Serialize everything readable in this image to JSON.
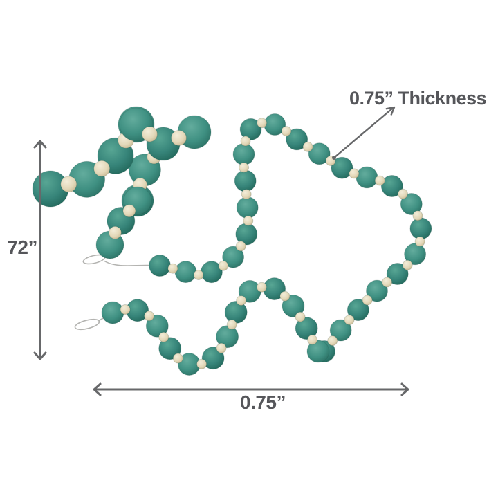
{
  "image": {
    "description": "Teal felt ball garland strung with small cream wooden spacer beads, coiled in an S-shape on a white background, shown with dimension annotations"
  },
  "annotations": {
    "length_label": "72”",
    "width_label": "0.75”",
    "thickness_label": "0.75” Thickness"
  },
  "colors": {
    "felt_bead": "#37857a",
    "felt_bead_light": "#58a694",
    "felt_bead_dark": "#1f6356",
    "felt_bead_alt": "#3f9082",
    "felt_bead_alt_light": "#63ac9d",
    "felt_bead_alt_dark": "#26695d",
    "spacer_bead": "#e3d8b9",
    "spacer_bead_light": "#f3edd9",
    "spacer_bead_dark": "#bfae86",
    "string": "#b3b3b0",
    "dimension_line": "#67686a",
    "label_text": "#55565a"
  }
}
